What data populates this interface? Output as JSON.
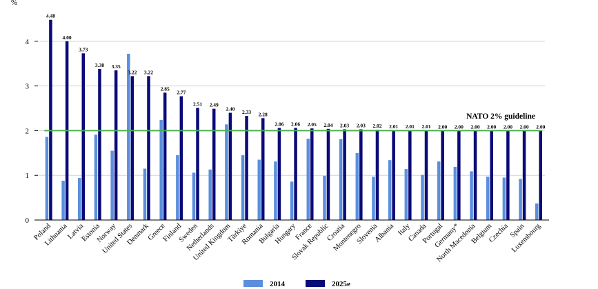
{
  "chart_data": {
    "type": "bar",
    "ylabel": "%",
    "ylim": [
      0,
      4.8
    ],
    "yticks": [
      0,
      1,
      2,
      3,
      4
    ],
    "grid": true,
    "legend_position": "bottom-center",
    "guideline": {
      "value": 2.0,
      "label": "NATO 2% guideline",
      "color": "#4caf50"
    },
    "categories": [
      "Poland",
      "Lithuania",
      "Latvia",
      "Estonia",
      "Norway",
      "United States",
      "Denmark",
      "Greece",
      "Finland",
      "Sweden",
      "Netherlands",
      "United Kingdom",
      "Türkiye",
      "Romania",
      "Bulgaria",
      "Hungary",
      "France",
      "Slovak Republic",
      "Croatia",
      "Montenegro",
      "Slovenia",
      "Albania",
      "Italy",
      "Canada",
      "Portugal",
      "Germany*",
      "North Macedonia",
      "Belgium",
      "Czechia",
      "Spain",
      "Luxembourg"
    ],
    "series": [
      {
        "name": "2014",
        "color": "#5b8fdd",
        "values": [
          1.86,
          0.88,
          0.94,
          1.91,
          1.55,
          3.72,
          1.15,
          2.24,
          1.45,
          1.06,
          1.13,
          2.14,
          1.45,
          1.35,
          1.31,
          0.86,
          1.82,
          0.99,
          1.81,
          1.5,
          0.97,
          1.34,
          1.14,
          1.01,
          1.31,
          1.19,
          1.09,
          0.97,
          0.95,
          0.92,
          0.37
        ]
      },
      {
        "name": "2025e",
        "color": "#0a0a78",
        "values": [
          4.48,
          4.0,
          3.73,
          3.38,
          3.35,
          3.22,
          3.22,
          2.85,
          2.77,
          2.51,
          2.49,
          2.4,
          2.33,
          2.28,
          2.06,
          2.06,
          2.05,
          2.04,
          2.03,
          2.03,
          2.02,
          2.01,
          2.01,
          2.01,
          2.0,
          2.0,
          2.0,
          2.0,
          2.0,
          2.0,
          2.0
        ]
      }
    ],
    "value_labels": [
      "4.48",
      "4.00",
      "3.73",
      "3.38",
      "3.35",
      "3.22",
      "3.22",
      "2.85",
      "2.77",
      "2.51",
      "2.49",
      "2.40",
      "2.33",
      "2.28",
      "2.06",
      "2.06",
      "2.05",
      "2.04",
      "2.03",
      "2.03",
      "2.02",
      "2.01",
      "2.01",
      "2.01",
      "2.00",
      "2.00",
      "2.00",
      "2.00",
      "2.00",
      "2.00",
      "2.00"
    ]
  }
}
